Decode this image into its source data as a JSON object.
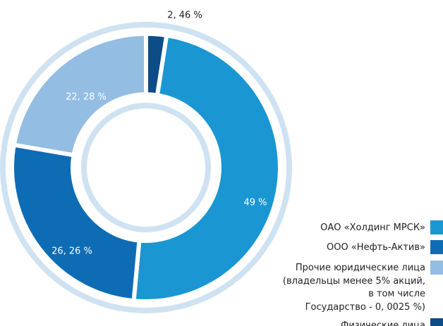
{
  "chart_data": {
    "type": "pie",
    "series": [
      {
        "name": "ОАО «Холдинг МРСК»",
        "color": "#1a96d2"
      },
      {
        "name": "ООО «Нефть-Актив»",
        "color": "#0e6cb5"
      },
      {
        "name": "Прочие юридические лица\n(владельцы менее 5% акций,\nв том числе\nГосударство - 0, 0025 %)",
        "color": "#94bde3"
      },
      {
        "name": "Физические лица",
        "color": "#0c4c87"
      }
    ],
    "values": [
      49,
      26.26,
      22.28,
      2.46
    ],
    "value_labels": [
      "49 %",
      "26, 26 %",
      "22, 28 %",
      "2, 46 %"
    ],
    "legend": "bottom-right"
  }
}
